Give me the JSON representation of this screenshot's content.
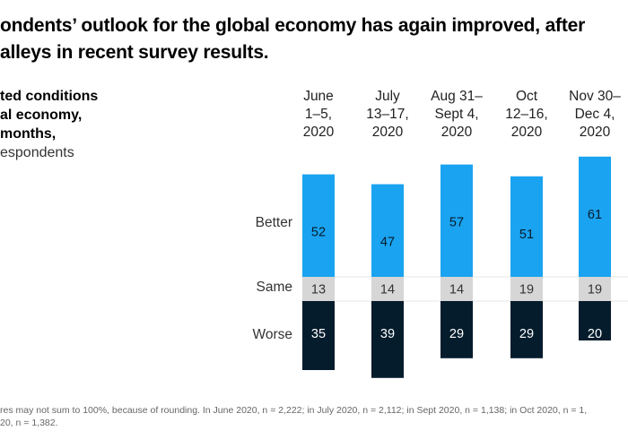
{
  "headline": {
    "line1": "ondents’ outlook for the global economy has again improved, after",
    "line2": "alleys in recent survey results."
  },
  "left_label": {
    "line1": "ted conditions",
    "line2": "al economy,",
    "line3": "months,",
    "unit": "espondents"
  },
  "footnote": {
    "line1": "res may not sum to 100%, because of rounding. In June 2020, n = 2,222; in July 2020, n = 2,112; in Sept 2020, n = 1,138; in Oct 2020, n = 1,",
    "line2": "20, n = 1,382."
  },
  "chart_data": {
    "type": "bar",
    "stacked": true,
    "categories": [
      [
        "June",
        "1–5,",
        "2020"
      ],
      [
        "July",
        "13–17,",
        "2020"
      ],
      [
        "Aug 31–",
        "Sept 4,",
        "2020"
      ],
      [
        "Oct",
        "12–16,",
        "2020"
      ],
      [
        "Nov 30–",
        "Dec 4,",
        "2020"
      ]
    ],
    "series": [
      {
        "name": "Better",
        "values": [
          52,
          47,
          57,
          51,
          61
        ],
        "color": "#1aa3f0",
        "label_color": "#051c2c"
      },
      {
        "name": "Same",
        "values": [
          13,
          14,
          14,
          19,
          19
        ],
        "color": "#d6d6d6",
        "label_color": "#333333"
      },
      {
        "name": "Worse",
        "values": [
          35,
          39,
          29,
          29,
          20
        ],
        "color": "#051c2c",
        "label_color": "#ffffff"
      }
    ],
    "unit": "% of respondents"
  }
}
